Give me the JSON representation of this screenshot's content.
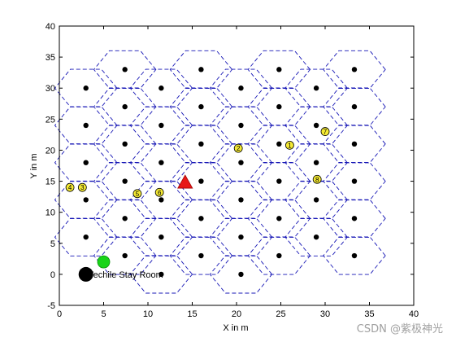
{
  "chart_data": {
    "type": "scatter",
    "title": "",
    "xlabel": "X in m",
    "ylabel": "Y in m",
    "xlim": [
      0,
      40
    ],
    "ylim": [
      -5,
      40
    ],
    "xticks": [
      "0",
      "5",
      "10",
      "15",
      "20",
      "25",
      "30",
      "35",
      "40"
    ],
    "yticks": [
      "-5",
      "0",
      "5",
      "10",
      "15",
      "20",
      "25",
      "30",
      "35",
      "40"
    ],
    "grid": false,
    "cell_radius": 3.5,
    "colors": {
      "hex_edge": "#1515b5",
      "bs": "#000000",
      "ue_fill": "#f5ea33",
      "uav": "#e81818",
      "stay_room": "#000000",
      "green": "#19d419",
      "axis": "#000000"
    },
    "base_stations": [
      [
        3,
        30
      ],
      [
        3,
        24
      ],
      [
        3,
        18
      ],
      [
        3,
        12
      ],
      [
        3,
        6
      ],
      [
        7.4,
        33
      ],
      [
        7.4,
        27
      ],
      [
        7.4,
        21
      ],
      [
        7.4,
        15
      ],
      [
        7.4,
        9
      ],
      [
        7.4,
        3
      ],
      [
        11.5,
        30
      ],
      [
        11.5,
        24
      ],
      [
        11.5,
        18
      ],
      [
        11.5,
        12
      ],
      [
        11.5,
        6
      ],
      [
        11.5,
        0
      ],
      [
        16,
        33
      ],
      [
        16,
        27
      ],
      [
        16,
        21
      ],
      [
        16,
        15
      ],
      [
        16,
        9
      ],
      [
        16,
        3
      ],
      [
        20.5,
        30
      ],
      [
        20.5,
        24
      ],
      [
        20.5,
        18
      ],
      [
        20.5,
        12
      ],
      [
        20.5,
        6
      ],
      [
        20.5,
        0
      ],
      [
        24.8,
        33
      ],
      [
        24.8,
        27
      ],
      [
        24.8,
        21
      ],
      [
        24.8,
        15
      ],
      [
        24.8,
        9
      ],
      [
        24.8,
        3
      ],
      [
        29,
        30
      ],
      [
        29,
        24
      ],
      [
        29,
        18
      ],
      [
        29,
        12
      ],
      [
        29,
        6
      ],
      [
        33.3,
        33
      ],
      [
        33.3,
        27
      ],
      [
        33.3,
        21
      ],
      [
        33.3,
        15
      ],
      [
        33.3,
        9
      ],
      [
        33.3,
        3
      ]
    ],
    "users": [
      {
        "x": 1.2,
        "y": 14,
        "label": "4"
      },
      {
        "x": 2.6,
        "y": 14,
        "label": "3"
      },
      {
        "x": 8.8,
        "y": 13,
        "label": "5"
      },
      {
        "x": 11.3,
        "y": 13.2,
        "label": "6"
      },
      {
        "x": 20.2,
        "y": 20.3,
        "label": "2"
      },
      {
        "x": 26,
        "y": 20.8,
        "label": "1"
      },
      {
        "x": 29.1,
        "y": 15.3,
        "label": "8"
      },
      {
        "x": 30,
        "y": 23,
        "label": "7"
      }
    ],
    "uav_position": {
      "x": 14.2,
      "y": 14.8
    },
    "green_point": {
      "x": 5,
      "y": 2
    },
    "stay_room": {
      "x": 3,
      "y": 0
    },
    "annotations": [
      {
        "x": 3.2,
        "y": 0,
        "text": "Vechile Stay Room"
      }
    ]
  },
  "watermark": "CSDN @紫极神光"
}
